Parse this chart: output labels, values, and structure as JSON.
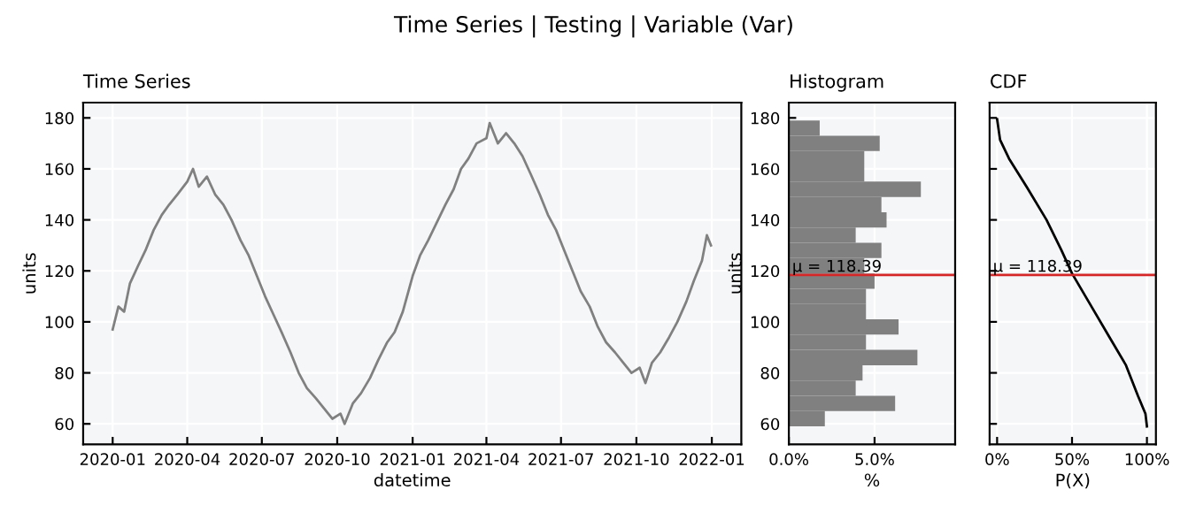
{
  "chart_data": [
    {
      "type": "line",
      "title": "Time Series",
      "xlabel": "datetime",
      "ylabel": "units",
      "annotations": [
        "Time Series | Testing | Variable (Var)"
      ],
      "grid": true,
      "xlim": [
        "2019-11-26",
        "2022-02-06"
      ],
      "ylim": [
        52,
        186
      ],
      "xticks": [
        {
          "value": "2020-01",
          "label": "2020-01"
        },
        {
          "value": "2020-04",
          "label": "2020-04"
        },
        {
          "value": "2020-07",
          "label": "2020-07"
        },
        {
          "value": "2020-10",
          "label": "2020-10"
        },
        {
          "value": "2021-01",
          "label": "2021-01"
        },
        {
          "value": "2021-04",
          "label": "2021-04"
        },
        {
          "value": "2021-07",
          "label": "2021-07"
        },
        {
          "value": "2021-10",
          "label": "2021-10"
        },
        {
          "value": "2022-01",
          "label": "2022-01"
        }
      ],
      "yticks": [
        60,
        80,
        100,
        120,
        140,
        160,
        180
      ],
      "x": [
        "2020-01-01",
        "2020-01-08",
        "2020-01-15",
        "2020-01-22",
        "2020-02-01",
        "2020-02-10",
        "2020-02-20",
        "2020-03-01",
        "2020-03-10",
        "2020-03-20",
        "2020-04-01",
        "2020-04-08",
        "2020-04-15",
        "2020-04-25",
        "2020-05-05",
        "2020-05-15",
        "2020-05-25",
        "2020-06-05",
        "2020-06-15",
        "2020-06-25",
        "2020-07-05",
        "2020-07-15",
        "2020-07-25",
        "2020-08-05",
        "2020-08-15",
        "2020-08-25",
        "2020-09-05",
        "2020-09-15",
        "2020-09-25",
        "2020-10-05",
        "2020-10-10",
        "2020-10-20",
        "2020-10-30",
        "2020-11-10",
        "2020-11-20",
        "2020-12-01",
        "2020-12-10",
        "2020-12-20",
        "2021-01-01",
        "2021-01-10",
        "2021-01-20",
        "2021-02-01",
        "2021-02-10",
        "2021-02-20",
        "2021-03-01",
        "2021-03-10",
        "2021-03-20",
        "2021-04-01",
        "2021-04-05",
        "2021-04-15",
        "2021-04-25",
        "2021-05-05",
        "2021-05-15",
        "2021-05-25",
        "2021-06-05",
        "2021-06-15",
        "2021-06-25",
        "2021-07-05",
        "2021-07-15",
        "2021-07-25",
        "2021-08-05",
        "2021-08-15",
        "2021-08-25",
        "2021-09-05",
        "2021-09-15",
        "2021-09-25",
        "2021-10-05",
        "2021-10-12",
        "2021-10-20",
        "2021-10-30",
        "2021-11-10",
        "2021-11-20",
        "2021-12-01",
        "2021-12-10",
        "2021-12-20",
        "2021-12-26",
        "2021-12-31"
      ],
      "series": [
        {
          "color": "#808080",
          "values": [
            97,
            106,
            104,
            115,
            122,
            128,
            136,
            142,
            146,
            150,
            155,
            160,
            153,
            157,
            150,
            146,
            140,
            132,
            126,
            118,
            110,
            103,
            96,
            88,
            80,
            74,
            70,
            66,
            62,
            64,
            60,
            68,
            72,
            78,
            85,
            92,
            96,
            104,
            118,
            126,
            132,
            140,
            146,
            152,
            160,
            164,
            170,
            172,
            178,
            170,
            174,
            170,
            165,
            158,
            150,
            142,
            136,
            128,
            120,
            112,
            106,
            98,
            92,
            88,
            84,
            80,
            82,
            76,
            84,
            88,
            94,
            100,
            108,
            116,
            124,
            134,
            130
          ]
        }
      ]
    },
    {
      "type": "histogram",
      "orientation": "horizontal",
      "title": "Histogram",
      "xlabel": "%",
      "ylabel": "units",
      "grid": true,
      "xlim": [
        0,
        9.7
      ],
      "ylim": [
        52,
        186
      ],
      "xticks": [
        {
          "value": 0,
          "label": "0.0%"
        },
        {
          "value": 5,
          "label": "5.0%"
        }
      ],
      "yticks": [
        60,
        80,
        100,
        120,
        140,
        160,
        180
      ],
      "bins": [
        59,
        65,
        71,
        77,
        83,
        89,
        95,
        101,
        107,
        113,
        119,
        125,
        131,
        137,
        143,
        149,
        155,
        161,
        167,
        173,
        179
      ],
      "values": [
        2.1,
        6.2,
        3.9,
        4.3,
        7.5,
        4.5,
        6.4,
        4.5,
        4.5,
        5.0,
        4.4,
        5.4,
        3.9,
        5.7,
        5.4,
        7.7,
        4.4,
        4.4,
        5.3,
        1.8
      ],
      "color": "#808080",
      "ref_lines": [
        {
          "axis": "y",
          "value": 118.39,
          "label": "μ = 118.39",
          "color": "#d62728"
        }
      ]
    },
    {
      "type": "line",
      "title": "CDF",
      "xlabel": "P(X)",
      "grid": true,
      "tick_labels": "x",
      "xlim": [
        -5,
        106
      ],
      "ylim": [
        52,
        186
      ],
      "xticks": [
        {
          "value": 0,
          "label": "0%"
        },
        {
          "value": 50,
          "label": "50%"
        },
        {
          "value": 100,
          "label": "100%"
        }
      ],
      "yticks": [
        60,
        80,
        100,
        120,
        140,
        160,
        180
      ],
      "x": [
        0,
        2,
        8,
        20,
        33,
        43,
        50,
        63,
        75,
        86,
        94,
        99,
        100
      ],
      "series": [
        {
          "color": "#000000",
          "values": [
            179.5,
            171.4,
            164,
            152.7,
            140,
            128,
            119,
            106,
            94,
            83,
            71,
            64,
            59
          ]
        }
      ],
      "ref_lines": [
        {
          "axis": "y",
          "value": 118.39,
          "label": "μ = 118.39",
          "color": "#d62728"
        }
      ]
    }
  ]
}
